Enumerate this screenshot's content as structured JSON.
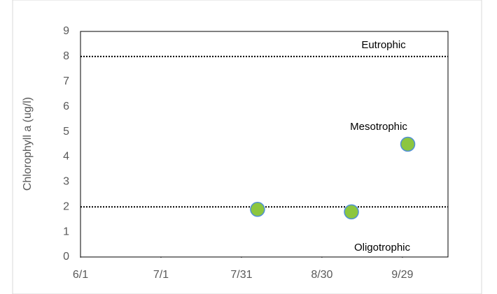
{
  "chart_data": {
    "type": "scatter",
    "y_label": "Chlorophyll a (ug/l)",
    "x": [
      218,
      253,
      274
    ],
    "series": [
      {
        "name": "Chlorophyll a",
        "color": "#8cc63f",
        "edge_color": "#4f8fd6",
        "values": [
          1.9,
          1.8,
          4.5
        ]
      }
    ],
    "xlim": [
      152,
      289
    ],
    "xticks": [
      {
        "value": 152,
        "label": "6/1"
      },
      {
        "value": 182,
        "label": "7/1"
      },
      {
        "value": 212,
        "label": "7/31"
      },
      {
        "value": 242,
        "label": "8/30"
      },
      {
        "value": 272,
        "label": "9/29"
      }
    ],
    "ylim": [
      0,
      9
    ],
    "yticks": [
      0,
      1,
      2,
      3,
      4,
      5,
      6,
      7,
      8,
      9
    ],
    "reference_lines": [
      8,
      2
    ],
    "annotations": [
      "Eutrophic",
      "Mesotrophic",
      "Oligotrophic"
    ],
    "grid": false
  }
}
